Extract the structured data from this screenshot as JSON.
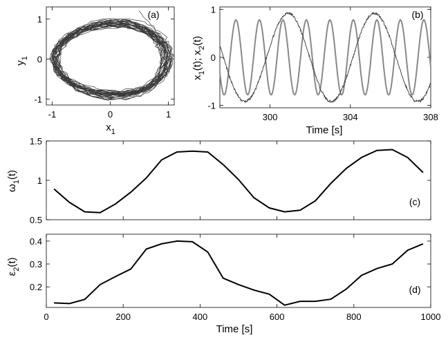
{
  "chart_data": [
    {
      "panel": "(a)",
      "type": "line",
      "xlabel": "x",
      "xlabel_sub": "1",
      "ylabel": "y",
      "ylabel_sub": "1",
      "xlim": [
        -1.1,
        1.1
      ],
      "ylim": [
        -1.15,
        1.3
      ],
      "xticks": [
        -1,
        0,
        1
      ],
      "yticks": [
        -1,
        0,
        1
      ],
      "description_series": "noisy limit-cycle trajectory (many overlapping loops, roughly unit ellipse)",
      "trajectory": {
        "loops": 28,
        "rx_range": [
          0.88,
          1.05
        ],
        "ry_range": [
          0.8,
          0.98
        ],
        "tail_end": [
          0.5,
          1.2
        ]
      }
    },
    {
      "panel": "(b)",
      "type": "line",
      "xlabel": "Time [s]",
      "ylabel": "x",
      "ylabel_sub1": "1",
      "ylabel_mid": "(t); x",
      "ylabel_sub2": "2",
      "ylabel_end": "(t)",
      "xlim": [
        297.5,
        308
      ],
      "ylim": [
        -1.05,
        1.05
      ],
      "xticks": [
        300,
        304,
        308
      ],
      "yticks": [
        -1,
        0,
        1
      ],
      "series": [
        {
          "color": "#888888",
          "amplitude": 0.78,
          "period": 1.17,
          "phase_peak_t": 298.3
        },
        {
          "color": "#333333",
          "amplitude": 0.92,
          "period": 4.3,
          "phase_peak_t": 305.2
        }
      ]
    },
    {
      "panel": "(c)",
      "type": "line",
      "xlabel": "",
      "ylabel": "ω",
      "ylabel_sub": "1",
      "ylabel_end": "(t)",
      "xlim": [
        0,
        1000
      ],
      "ylim": [
        0.5,
        1.5
      ],
      "xticks": [
        0,
        200,
        400,
        600,
        800,
        1000
      ],
      "yticks": [
        0.5,
        1,
        1.5
      ],
      "x": [
        20,
        60,
        100,
        140,
        180,
        220,
        260,
        300,
        340,
        380,
        420,
        460,
        500,
        540,
        580,
        620,
        660,
        700,
        740,
        780,
        820,
        860,
        900,
        940,
        980
      ],
      "values": [
        0.89,
        0.72,
        0.6,
        0.59,
        0.7,
        0.85,
        1.03,
        1.26,
        1.36,
        1.37,
        1.36,
        1.2,
        1.01,
        0.78,
        0.65,
        0.6,
        0.62,
        0.74,
        0.96,
        1.15,
        1.29,
        1.38,
        1.39,
        1.29,
        1.1
      ]
    },
    {
      "panel": "(d)",
      "type": "line",
      "xlabel": "Time [s]",
      "ylabel": "ε",
      "ylabel_sub": "2",
      "ylabel_end": "(t)",
      "xlim": [
        0,
        1000
      ],
      "ylim": [
        0.11,
        0.43
      ],
      "xticks": [
        0,
        200,
        400,
        600,
        800,
        1000
      ],
      "yticks": [
        0.2,
        0.3,
        0.4
      ],
      "x": [
        20,
        60,
        100,
        140,
        180,
        220,
        260,
        300,
        340,
        380,
        420,
        460,
        500,
        540,
        580,
        620,
        660,
        700,
        740,
        780,
        820,
        860,
        900,
        940,
        980
      ],
      "values": [
        0.13,
        0.127,
        0.145,
        0.21,
        0.245,
        0.278,
        0.365,
        0.388,
        0.4,
        0.397,
        0.352,
        0.238,
        0.21,
        0.186,
        0.168,
        0.12,
        0.137,
        0.137,
        0.146,
        0.19,
        0.25,
        0.28,
        0.3,
        0.36,
        0.388
      ]
    }
  ]
}
